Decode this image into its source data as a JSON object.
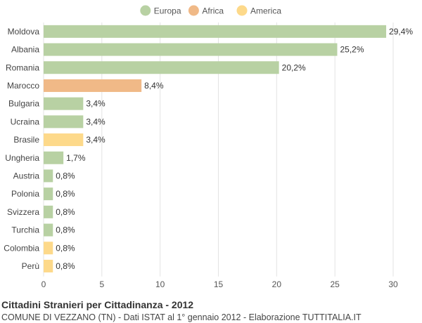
{
  "chart_data": {
    "type": "bar",
    "orientation": "horizontal",
    "categories": [
      "Moldova",
      "Albania",
      "Romania",
      "Marocco",
      "Bulgaria",
      "Ucraina",
      "Brasile",
      "Ungheria",
      "Austria",
      "Polonia",
      "Svizzera",
      "Turchia",
      "Colombia",
      "Perù"
    ],
    "values": [
      29.4,
      25.2,
      20.2,
      8.4,
      3.4,
      3.4,
      3.4,
      1.7,
      0.8,
      0.8,
      0.8,
      0.8,
      0.8,
      0.8
    ],
    "value_labels": [
      "29,4%",
      "25,2%",
      "20,2%",
      "8,4%",
      "3,4%",
      "3,4%",
      "3,4%",
      "1,7%",
      "0,8%",
      "0,8%",
      "0,8%",
      "0,8%",
      "0,8%",
      "0,8%"
    ],
    "groups": [
      "Europa",
      "Europa",
      "Europa",
      "Africa",
      "Europa",
      "Europa",
      "America",
      "Europa",
      "Europa",
      "Europa",
      "Europa",
      "Europa",
      "America",
      "America"
    ],
    "legend": [
      {
        "name": "Europa",
        "color": "#b8d1a3"
      },
      {
        "name": "Africa",
        "color": "#f0b987"
      },
      {
        "name": "America",
        "color": "#fdd98a"
      }
    ],
    "legend_position": "top",
    "xlim": [
      0,
      30
    ],
    "xticks": [
      0,
      5,
      10,
      15,
      20,
      25,
      30
    ],
    "grid": true
  },
  "footer": {
    "title": "Cittadini Stranieri per Cittadinanza - 2012",
    "subtitle": "COMUNE DI VEZZANO (TN) - Dati ISTAT al 1° gennaio 2012 - Elaborazione TUTTITALIA.IT"
  }
}
